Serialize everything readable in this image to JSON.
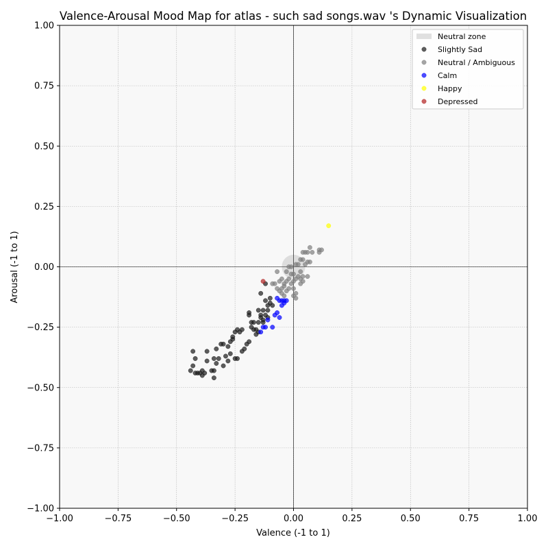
{
  "chart_data": {
    "type": "scatter",
    "title": "Valence-Arousal Mood Map for atlas - such sad songs.wav 's Dynamic Visualization",
    "xlabel": "Valence (-1 to 1)",
    "ylabel": "Arousal (-1 to 1)",
    "xlim": [
      -1,
      1
    ],
    "ylim": [
      -1,
      1
    ],
    "x_ticks": [
      "−1.00",
      "−0.75",
      "−0.50",
      "−0.25",
      "0.00",
      "0.25",
      "0.50",
      "0.75",
      "1.00"
    ],
    "y_ticks": [
      "−1.00",
      "−0.75",
      "−0.50",
      "−0.25",
      "0.00",
      "0.25",
      "0.50",
      "0.75",
      "1.00"
    ],
    "grid": true,
    "legend_position": "top-right",
    "neutral_zone": {
      "label": "Neutral zone",
      "center": [
        0,
        0
      ],
      "radius": 0.05,
      "color": "#cccccc"
    },
    "series": [
      {
        "name": "Slightly Sad",
        "color": "#1a1a1a",
        "points": [
          [
            -0.43,
            -0.35
          ],
          [
            -0.37,
            -0.35
          ],
          [
            -0.42,
            -0.38
          ],
          [
            -0.43,
            -0.41
          ],
          [
            -0.44,
            -0.43
          ],
          [
            -0.42,
            -0.44
          ],
          [
            -0.41,
            -0.44
          ],
          [
            -0.4,
            -0.44
          ],
          [
            -0.39,
            -0.43
          ],
          [
            -0.39,
            -0.45
          ],
          [
            -0.38,
            -0.44
          ],
          [
            -0.37,
            -0.39
          ],
          [
            -0.35,
            -0.43
          ],
          [
            -0.34,
            -0.43
          ],
          [
            -0.34,
            -0.38
          ],
          [
            -0.34,
            -0.46
          ],
          [
            -0.33,
            -0.4
          ],
          [
            -0.33,
            -0.34
          ],
          [
            -0.32,
            -0.38
          ],
          [
            -0.31,
            -0.32
          ],
          [
            -0.3,
            -0.41
          ],
          [
            -0.3,
            -0.32
          ],
          [
            -0.29,
            -0.37
          ],
          [
            -0.28,
            -0.39
          ],
          [
            -0.28,
            -0.33
          ],
          [
            -0.27,
            -0.36
          ],
          [
            -0.27,
            -0.31
          ],
          [
            -0.26,
            -0.29
          ],
          [
            -0.26,
            -0.3
          ],
          [
            -0.25,
            -0.38
          ],
          [
            -0.25,
            -0.27
          ],
          [
            -0.24,
            -0.38
          ],
          [
            -0.24,
            -0.26
          ],
          [
            -0.23,
            -0.27
          ],
          [
            -0.22,
            -0.26
          ],
          [
            -0.22,
            -0.35
          ],
          [
            -0.21,
            -0.34
          ],
          [
            -0.2,
            -0.32
          ],
          [
            -0.19,
            -0.31
          ],
          [
            -0.19,
            -0.19
          ],
          [
            -0.19,
            -0.2
          ],
          [
            -0.18,
            -0.23
          ],
          [
            -0.18,
            -0.25
          ],
          [
            -0.17,
            -0.23
          ],
          [
            -0.17,
            -0.26
          ],
          [
            -0.16,
            -0.26
          ],
          [
            -0.16,
            -0.28
          ],
          [
            -0.15,
            -0.23
          ],
          [
            -0.15,
            -0.18
          ],
          [
            -0.15,
            -0.27
          ],
          [
            -0.14,
            -0.21
          ],
          [
            -0.14,
            -0.2
          ],
          [
            -0.14,
            -0.11
          ],
          [
            -0.13,
            -0.22
          ],
          [
            -0.13,
            -0.18
          ],
          [
            -0.13,
            -0.23
          ],
          [
            -0.12,
            -0.2
          ],
          [
            -0.12,
            -0.14
          ],
          [
            -0.11,
            -0.21
          ],
          [
            -0.11,
            -0.18
          ],
          [
            -0.11,
            -0.16
          ],
          [
            -0.1,
            -0.13
          ],
          [
            -0.1,
            -0.15
          ],
          [
            -0.09,
            -0.16
          ],
          [
            -0.12,
            -0.07
          ]
        ]
      },
      {
        "name": "Neutral / Ambiguous",
        "color": "#7f7f7f",
        "points": [
          [
            -0.07,
            -0.02
          ],
          [
            -0.08,
            -0.07
          ],
          [
            -0.07,
            -0.09
          ],
          [
            -0.06,
            -0.06
          ],
          [
            -0.06,
            -0.1
          ],
          [
            -0.05,
            -0.09
          ],
          [
            -0.05,
            -0.11
          ],
          [
            -0.05,
            -0.05
          ],
          [
            -0.04,
            -0.08
          ],
          [
            -0.04,
            -0.12
          ],
          [
            -0.04,
            -0.07
          ],
          [
            -0.03,
            -0.02
          ],
          [
            -0.03,
            -0.1
          ],
          [
            -0.03,
            -0.06
          ],
          [
            -0.02,
            0.0
          ],
          [
            -0.02,
            -0.05
          ],
          [
            -0.02,
            -0.09
          ],
          [
            -0.01,
            -0.03
          ],
          [
            -0.01,
            -0.07
          ],
          [
            -0.01,
            0.0
          ],
          [
            0.0,
            -0.03
          ],
          [
            0.0,
            -0.06
          ],
          [
            0.0,
            -0.09
          ],
          [
            0.01,
            -0.11
          ],
          [
            0.01,
            -0.13
          ],
          [
            0.01,
            0.01
          ],
          [
            0.01,
            -0.05
          ],
          [
            0.02,
            -0.04
          ],
          [
            0.02,
            0.01
          ],
          [
            0.03,
            0.03
          ],
          [
            0.03,
            -0.02
          ],
          [
            0.03,
            -0.05
          ],
          [
            0.03,
            -0.07
          ],
          [
            0.04,
            0.06
          ],
          [
            0.04,
            -0.04
          ],
          [
            0.04,
            0.03
          ],
          [
            0.04,
            -0.06
          ],
          [
            0.05,
            0.06
          ],
          [
            0.05,
            0.01
          ],
          [
            0.06,
            0.06
          ],
          [
            0.06,
            0.02
          ],
          [
            0.06,
            -0.04
          ],
          [
            0.07,
            0.08
          ],
          [
            0.07,
            0.02
          ],
          [
            0.08,
            0.06
          ],
          [
            0.11,
            0.06
          ],
          [
            0.11,
            0.07
          ],
          [
            0.12,
            0.07
          ],
          [
            -0.09,
            -0.07
          ],
          [
            0.0,
            -0.12
          ]
        ]
      },
      {
        "name": "Calm",
        "color": "#0000ff",
        "points": [
          [
            -0.14,
            -0.27
          ],
          [
            -0.13,
            -0.25
          ],
          [
            -0.12,
            -0.25
          ],
          [
            -0.11,
            -0.22
          ],
          [
            -0.09,
            -0.25
          ],
          [
            -0.08,
            -0.2
          ],
          [
            -0.07,
            -0.19
          ],
          [
            -0.06,
            -0.21
          ],
          [
            -0.05,
            -0.16
          ],
          [
            -0.05,
            -0.14
          ],
          [
            -0.04,
            -0.15
          ],
          [
            -0.03,
            -0.14
          ],
          [
            -0.06,
            -0.14
          ],
          [
            -0.07,
            -0.13
          ],
          [
            -0.04,
            -0.14
          ]
        ]
      },
      {
        "name": "Happy",
        "color": "#ffff00",
        "points": [
          [
            0.15,
            0.17
          ]
        ]
      },
      {
        "name": "Depressed",
        "color": "#b22222",
        "points": [
          [
            -0.13,
            -0.06
          ]
        ]
      }
    ]
  }
}
